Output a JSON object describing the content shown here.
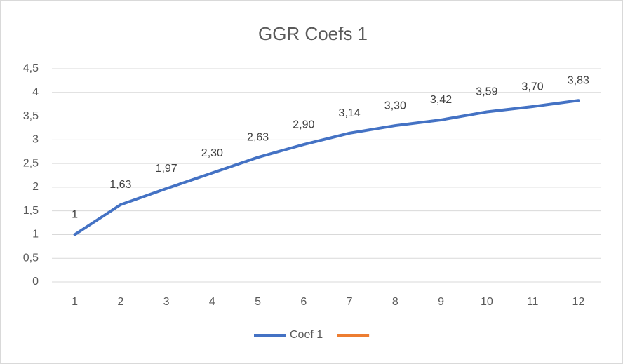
{
  "chart_data": {
    "type": "line",
    "title": "GGR Coefs 1",
    "categories": [
      "1",
      "2",
      "3",
      "4",
      "5",
      "6",
      "7",
      "8",
      "9",
      "10",
      "11",
      "12"
    ],
    "series": [
      {
        "name": "Coef 1",
        "color": "#4472c4",
        "values": [
          1,
          1.63,
          1.97,
          2.3,
          2.63,
          2.9,
          3.14,
          3.3,
          3.42,
          3.59,
          3.7,
          3.83
        ],
        "value_labels": [
          "1",
          "1,63",
          "1,97",
          "2,30",
          "2,63",
          "2,90",
          "3,14",
          "3,30",
          "3,42",
          "3,59",
          "3,70",
          "3,83"
        ]
      },
      {
        "name": null,
        "color": "#ed7d31",
        "values": [
          null,
          null,
          null,
          null,
          null,
          null,
          null,
          null,
          null,
          null,
          null,
          null
        ]
      }
    ],
    "ylim": [
      0,
      4.5
    ],
    "yticks": [
      0,
      {
        "value": 0.5,
        "label": "0,5"
      },
      1,
      {
        "value": 1.5,
        "label": "1,5"
      },
      2,
      {
        "value": 2.5,
        "label": "2,5"
      },
      3,
      {
        "value": 3.5,
        "label": "3,5"
      },
      4,
      {
        "value": 4.5,
        "label": "4,5"
      }
    ],
    "grid": true,
    "legend": "bottom"
  }
}
